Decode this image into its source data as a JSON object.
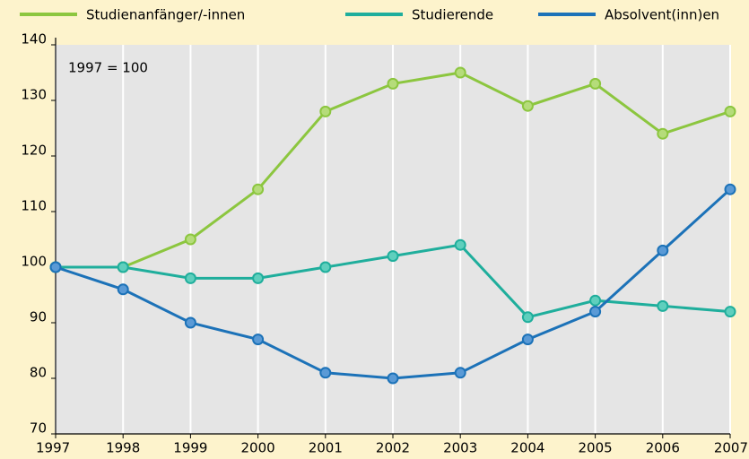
{
  "chart_data": {
    "type": "line",
    "annotation": "1997 = 100",
    "x": [
      1997,
      1998,
      1999,
      2000,
      2001,
      2002,
      2003,
      2004,
      2005,
      2006,
      2007
    ],
    "series": [
      {
        "name": "Studienanfänger/-innen",
        "color": "#8cc63f",
        "marker_fill": "#b5dc7a",
        "values": [
          100,
          100,
          105,
          114,
          128,
          133,
          135,
          129,
          133,
          124,
          128
        ]
      },
      {
        "name": "Studierende",
        "color": "#1fae9c",
        "marker_fill": "#5fcfbd",
        "values": [
          100,
          100,
          98,
          98,
          100,
          102,
          104,
          91,
          94,
          93,
          92
        ]
      },
      {
        "name": "Absolvent(inn)en",
        "color": "#1c72b8",
        "marker_fill": "#5a9ad6",
        "values": [
          100,
          96,
          90,
          87,
          81,
          80,
          81,
          87,
          92,
          103,
          114
        ]
      }
    ],
    "xlim": [
      1997,
      2007
    ],
    "xticks": [
      1997,
      1998,
      1999,
      2000,
      2001,
      2002,
      2003,
      2004,
      2005,
      2006,
      2007
    ],
    "ylim": [
      70,
      140
    ],
    "yticks": [
      70,
      80,
      90,
      100,
      110,
      120,
      130,
      140
    ],
    "grid": true,
    "legend": "top"
  }
}
